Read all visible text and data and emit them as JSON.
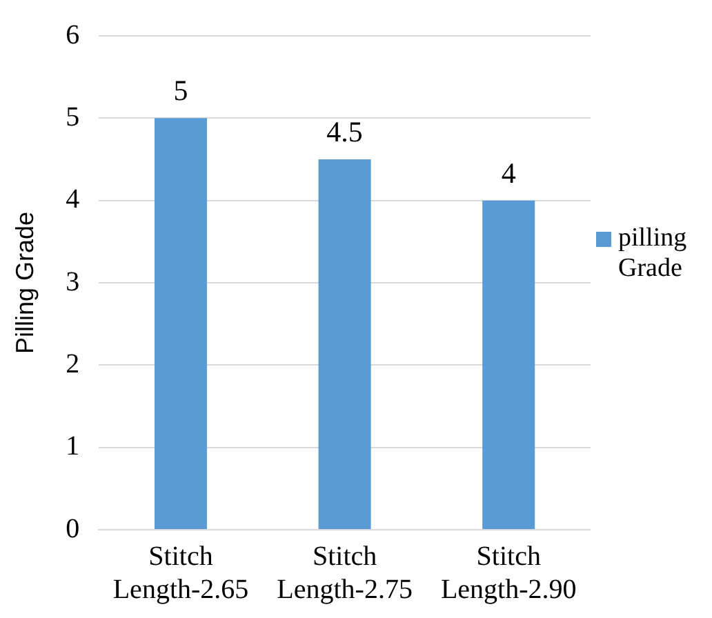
{
  "chart_data": {
    "type": "bar",
    "ylabel": "Pilling Grade",
    "categories": [
      "Stitch Length-2.65",
      "Stitch Length-2.75",
      "Stitch Length-2.90"
    ],
    "series": [
      {
        "name": "pilling Grade",
        "color": "#5b9bd5",
        "values": [
          5,
          4.5,
          4
        ]
      }
    ],
    "ylim": [
      0,
      6
    ],
    "yticks": [
      0,
      1,
      2,
      3,
      4,
      5,
      6
    ],
    "grid": "y",
    "legend": "right",
    "data_labels": true
  }
}
